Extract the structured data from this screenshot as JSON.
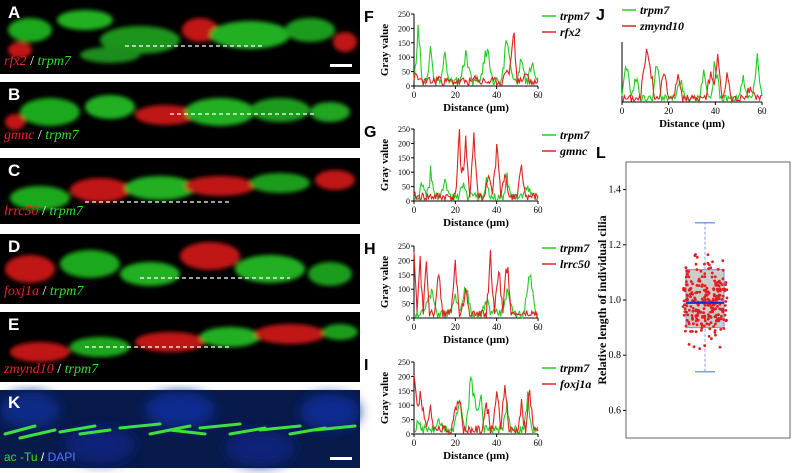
{
  "micrographs": [
    {
      "letter": "A",
      "red_label": "rfx2",
      "green_label": "trpm7"
    },
    {
      "letter": "B",
      "red_label": "gmnc",
      "green_label": "trpm7"
    },
    {
      "letter": "C",
      "red_label": "lrrc50",
      "green_label": "trpm7"
    },
    {
      "letter": "D",
      "red_label": "foxj1a",
      "green_label": "trpm7"
    },
    {
      "letter": "E",
      "red_label": "zmynd10",
      "green_label": "trpm7"
    }
  ],
  "panel_k": {
    "letter": "K",
    "label_a": "ac -Tu",
    "label_b": "DAPI"
  },
  "profile_plots": [
    {
      "letter": "F",
      "ylabel": "Gray value",
      "xlabel": "Distance (μm)",
      "legend": [
        "trpm7",
        "rfx2"
      ],
      "xlim": [
        0,
        60
      ],
      "ylim": [
        0,
        250
      ],
      "xticks": [
        0,
        20,
        40,
        60
      ],
      "yticks": [
        0,
        50,
        100,
        150,
        200,
        250
      ]
    },
    {
      "letter": "G",
      "ylabel": "Gray value",
      "xlabel": "Distance (μm)",
      "legend": [
        "trpm7",
        "gmnc"
      ],
      "xlim": [
        0,
        60
      ],
      "ylim": [
        0,
        250
      ],
      "xticks": [
        0,
        20,
        40,
        60
      ],
      "yticks": [
        0,
        50,
        100,
        150,
        200,
        250
      ]
    },
    {
      "letter": "H",
      "ylabel": "Gray value",
      "xlabel": "Distance (μm)",
      "legend": [
        "trpm7",
        "lrrc50"
      ],
      "xlim": [
        0,
        60
      ],
      "ylim": [
        0,
        250
      ],
      "xticks": [
        0,
        20,
        40,
        60
      ],
      "yticks": [
        0,
        50,
        100,
        150,
        200,
        250
      ]
    },
    {
      "letter": "I",
      "ylabel": "Gray value",
      "xlabel": "Distance (μm)",
      "legend": [
        "trpm7",
        "foxj1a"
      ],
      "xlim": [
        0,
        60
      ],
      "ylim": [
        0,
        250
      ],
      "xticks": [
        0,
        20,
        40,
        60
      ],
      "yticks": [
        0,
        50,
        100,
        150,
        200,
        250
      ]
    },
    {
      "letter": "J",
      "ylabel": "",
      "xlabel": "Distance (μm)",
      "legend": [
        "trpm7",
        "zmynd10"
      ],
      "xlim": [
        0,
        60
      ],
      "ylim": [
        0,
        250
      ],
      "xticks": [
        0,
        20,
        40,
        60
      ],
      "yticks": []
    }
  ],
  "box_plot": {
    "letter": "L",
    "ylabel": "Relative length of individual cilia",
    "ylim": [
      0.5,
      1.5
    ],
    "yticks": [
      "0.6",
      "0.8",
      "1.0",
      "1.2",
      "1.4"
    ],
    "whisker_low": 0.74,
    "q1": 0.9,
    "median": 0.99,
    "q3": 1.11,
    "whisker_high": 1.28
  },
  "colors": {
    "green": "#22cc22",
    "red": "#dd2222",
    "box_fill": "#cccccc",
    "box_edge": "#7f9fe8",
    "median": "#1e2ad8"
  }
}
